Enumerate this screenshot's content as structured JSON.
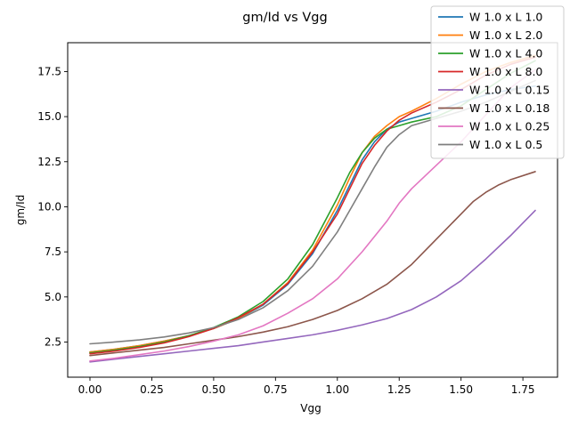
{
  "chart_data": {
    "type": "line",
    "title": "gm/Id vs Vgg",
    "xlabel": "Vgg",
    "ylabel": "gm/Id",
    "xlim": [
      -0.09,
      1.89
    ],
    "ylim": [
      0.55,
      19.1
    ],
    "xticks": [
      "0.00",
      "0.25",
      "0.50",
      "0.75",
      "1.00",
      "1.25",
      "1.50",
      "1.75"
    ],
    "yticks": [
      "2.5",
      "5.0",
      "7.5",
      "10.0",
      "12.5",
      "15.0",
      "17.5"
    ],
    "grid": false,
    "legend_position": "top-right",
    "series": [
      {
        "name": "W 1.0 x L 1.0",
        "color": "#1f77b4",
        "x": [
          0,
          0.1,
          0.2,
          0.3,
          0.4,
          0.5,
          0.6,
          0.7,
          0.8,
          0.9,
          1.0,
          1.05,
          1.1,
          1.15,
          1.2,
          1.25,
          1.3,
          1.4,
          1.5,
          1.6,
          1.7,
          1.8
        ],
        "y": [
          1.95,
          2.1,
          2.3,
          2.55,
          2.85,
          3.25,
          3.8,
          4.55,
          5.7,
          7.4,
          9.8,
          11.2,
          12.6,
          13.6,
          14.3,
          14.7,
          14.9,
          15.3,
          15.8,
          16.2,
          16.5,
          16.7
        ]
      },
      {
        "name": "W 1.0 x L 2.0",
        "color": "#ff7f0e",
        "x": [
          0,
          0.1,
          0.2,
          0.3,
          0.4,
          0.5,
          0.6,
          0.7,
          0.8,
          0.9,
          1.0,
          1.05,
          1.1,
          1.15,
          1.2,
          1.25,
          1.3,
          1.4,
          1.5,
          1.6,
          1.7,
          1.8
        ],
        "y": [
          1.95,
          2.1,
          2.3,
          2.55,
          2.85,
          3.25,
          3.8,
          4.6,
          5.8,
          7.6,
          10.1,
          11.6,
          13.0,
          13.9,
          14.5,
          15.0,
          15.3,
          16.0,
          16.8,
          17.5,
          18.0,
          18.4
        ]
      },
      {
        "name": "W 1.0 x L 4.0",
        "color": "#2ca02c",
        "x": [
          0,
          0.1,
          0.2,
          0.3,
          0.4,
          0.5,
          0.6,
          0.7,
          0.8,
          0.9,
          1.0,
          1.05,
          1.1,
          1.15,
          1.2,
          1.25,
          1.3,
          1.4,
          1.5,
          1.6,
          1.7,
          1.8
        ],
        "y": [
          1.9,
          2.05,
          2.25,
          2.5,
          2.85,
          3.3,
          3.9,
          4.75,
          6.0,
          7.9,
          10.5,
          11.9,
          13.0,
          13.8,
          14.3,
          14.5,
          14.7,
          15.0,
          15.6,
          16.5,
          17.4,
          18.1
        ]
      },
      {
        "name": "W 1.0 x L 8.0",
        "color": "#d62728",
        "x": [
          0,
          0.1,
          0.2,
          0.3,
          0.4,
          0.5,
          0.6,
          0.7,
          0.8,
          0.9,
          1.0,
          1.05,
          1.1,
          1.15,
          1.2,
          1.25,
          1.3,
          1.4,
          1.5,
          1.6,
          1.7,
          1.8
        ],
        "y": [
          1.85,
          2.0,
          2.2,
          2.45,
          2.8,
          3.25,
          3.85,
          4.6,
          5.75,
          7.5,
          9.6,
          11.0,
          12.4,
          13.4,
          14.2,
          14.8,
          15.2,
          15.8,
          16.5,
          17.3,
          17.9,
          18.3
        ]
      },
      {
        "name": "W 1.0 x L 0.15",
        "color": "#9467bd",
        "x": [
          0,
          0.1,
          0.2,
          0.3,
          0.4,
          0.5,
          0.6,
          0.7,
          0.8,
          0.9,
          1.0,
          1.1,
          1.2,
          1.3,
          1.4,
          1.5,
          1.6,
          1.7,
          1.8
        ],
        "y": [
          1.4,
          1.55,
          1.7,
          1.85,
          2.0,
          2.15,
          2.3,
          2.5,
          2.7,
          2.9,
          3.15,
          3.45,
          3.8,
          4.3,
          5.0,
          5.9,
          7.1,
          8.4,
          9.8
        ]
      },
      {
        "name": "W 1.0 x L 0.18",
        "color": "#8c564b",
        "x": [
          0,
          0.1,
          0.2,
          0.3,
          0.4,
          0.5,
          0.6,
          0.7,
          0.8,
          0.9,
          1.0,
          1.1,
          1.2,
          1.3,
          1.4,
          1.5,
          1.55,
          1.6,
          1.65,
          1.7,
          1.8
        ],
        "y": [
          1.75,
          1.9,
          2.05,
          2.2,
          2.4,
          2.6,
          2.8,
          3.05,
          3.35,
          3.75,
          4.25,
          4.9,
          5.7,
          6.8,
          8.2,
          9.6,
          10.3,
          10.8,
          11.2,
          11.5,
          11.95
        ]
      },
      {
        "name": "W 1.0 x L 0.25",
        "color": "#e377c2",
        "x": [
          0,
          0.1,
          0.2,
          0.3,
          0.4,
          0.5,
          0.6,
          0.7,
          0.8,
          0.9,
          1.0,
          1.1,
          1.2,
          1.25,
          1.3,
          1.4,
          1.5,
          1.6,
          1.7,
          1.8
        ],
        "y": [
          1.45,
          1.6,
          1.8,
          2.0,
          2.25,
          2.55,
          2.9,
          3.4,
          4.1,
          4.9,
          6.0,
          7.5,
          9.2,
          10.2,
          11.0,
          12.3,
          13.6,
          15.1,
          16.6,
          17.6
        ]
      },
      {
        "name": "W 1.0 x L 0.5",
        "color": "#7f7f7f",
        "x": [
          0,
          0.1,
          0.2,
          0.3,
          0.4,
          0.5,
          0.6,
          0.7,
          0.8,
          0.9,
          1.0,
          1.05,
          1.1,
          1.15,
          1.2,
          1.25,
          1.3,
          1.4,
          1.5,
          1.6,
          1.7,
          1.8
        ],
        "y": [
          2.4,
          2.5,
          2.62,
          2.78,
          3.0,
          3.3,
          3.75,
          4.4,
          5.35,
          6.7,
          8.6,
          9.8,
          11.0,
          12.2,
          13.3,
          14.0,
          14.5,
          14.9,
          15.3,
          15.8,
          16.4,
          17.0
        ]
      }
    ]
  }
}
